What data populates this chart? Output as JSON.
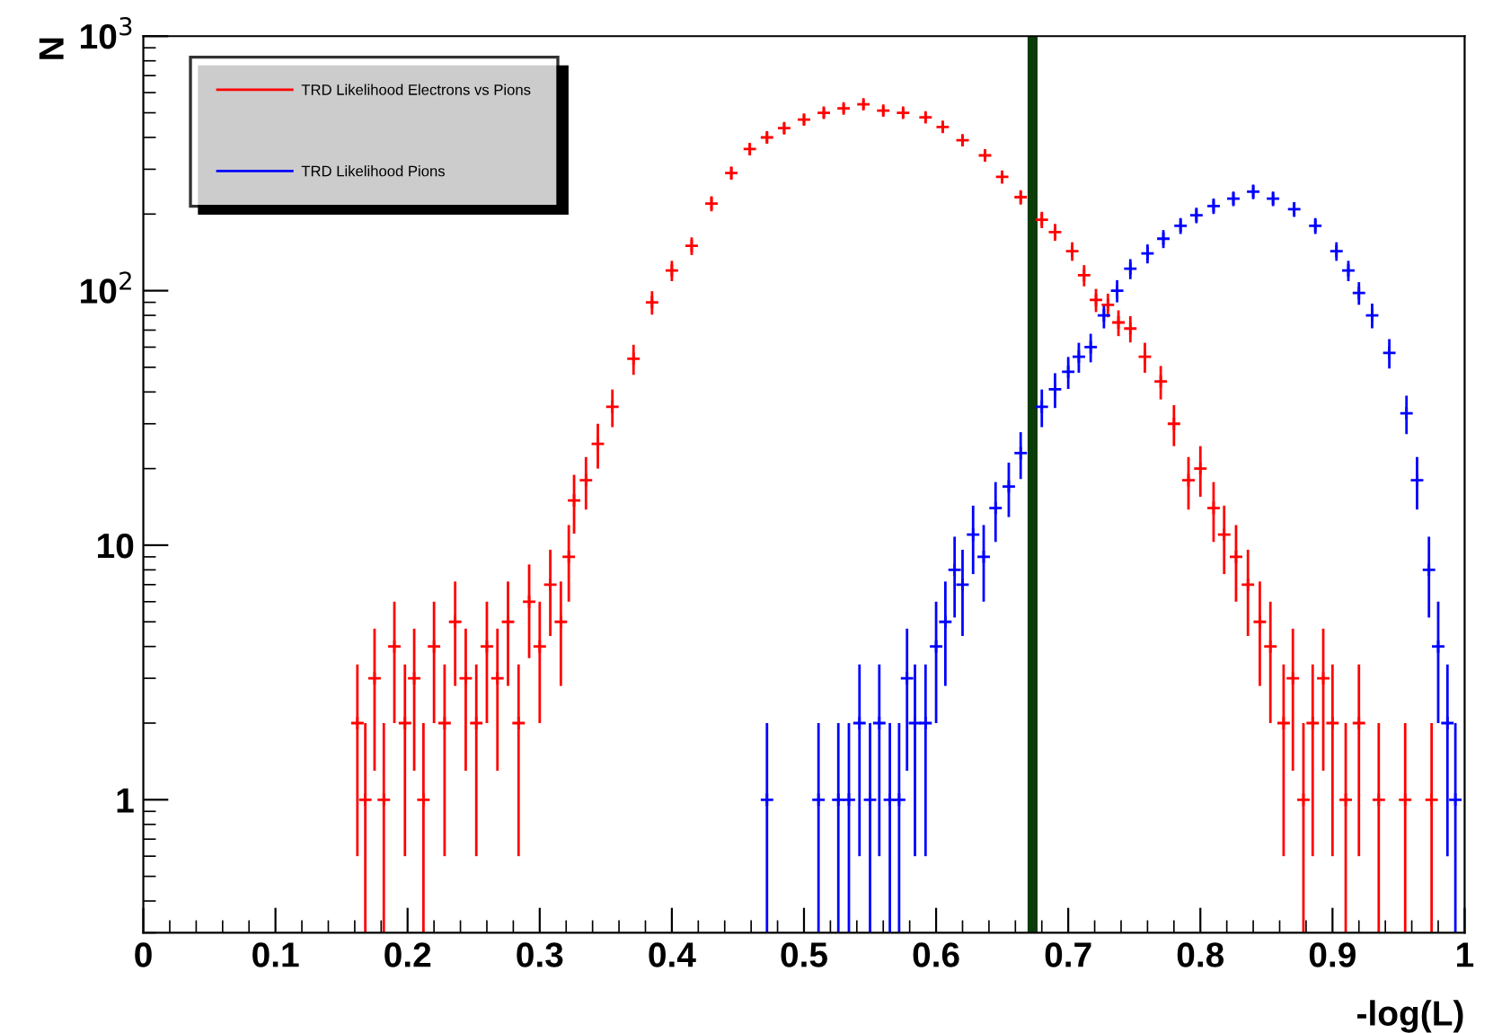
{
  "chart_data": {
    "type": "scatter",
    "xlabel": "-log(L)",
    "ylabel": "N",
    "log": "y",
    "grid": false,
    "legend": "top left",
    "marker": "cross",
    "xlim": [
      0,
      1
    ],
    "ylim": [
      0.3,
      1000
    ],
    "xticks": [
      0,
      0.1,
      0.2,
      0.3,
      0.4,
      0.5,
      0.6,
      0.7,
      0.8,
      0.9,
      1
    ],
    "yticks": [
      1,
      10,
      {
        "value": 100,
        "label": "10$^{2}$"
      },
      {
        "value": 1000,
        "label": "10$^{3}$"
      }
    ],
    "ref_lines": [
      {
        "axis": "x",
        "value": 0.673,
        "label": null,
        "color": "#0b3d0b"
      }
    ],
    "series": [
      {
        "name": "TRD Likelihood Electrons vs Pions",
        "color": "#ff0000",
        "x": [
          0.162,
          0.168,
          0.175,
          0.182,
          0.19,
          0.198,
          0.205,
          0.212,
          0.22,
          0.228,
          0.236,
          0.244,
          0.252,
          0.26,
          0.268,
          0.276,
          0.284,
          0.292,
          0.3,
          0.308,
          0.316,
          0.322,
          0.326,
          0.335,
          0.344,
          0.355,
          0.371,
          0.385,
          0.4,
          0.415,
          0.43,
          0.445,
          0.459,
          0.472,
          0.485,
          0.5,
          0.515,
          0.53,
          0.545,
          0.56,
          0.575,
          0.592,
          0.605,
          0.62,
          0.637,
          0.65,
          0.664,
          0.68,
          0.69,
          0.703,
          0.712,
          0.721,
          0.73,
          0.738,
          0.747,
          0.758,
          0.77,
          0.78,
          0.791,
          0.8,
          0.81,
          0.818,
          0.827,
          0.836,
          0.845,
          0.853,
          0.863,
          0.87,
          0.878,
          0.885,
          0.893,
          0.9,
          0.91,
          0.92,
          0.935,
          0.955,
          0.975
        ],
        "values": [
          2,
          1,
          3,
          1,
          4,
          2,
          3,
          1,
          4,
          2,
          5,
          3,
          2,
          4,
          3,
          5,
          2,
          6,
          4,
          7,
          5,
          9,
          15,
          18,
          25,
          35,
          54,
          90,
          120,
          150,
          220,
          290,
          360,
          400,
          435,
          470,
          500,
          520,
          540,
          510,
          500,
          480,
          440,
          390,
          340,
          280,
          233,
          190,
          170,
          143,
          115,
          92,
          88,
          75,
          71,
          55,
          44,
          30,
          18,
          20,
          14,
          11,
          9,
          7,
          5,
          4,
          2,
          3,
          1,
          2,
          3,
          2,
          1,
          2,
          1,
          1,
          1
        ],
        "errors": [
          1.4,
          [
            0.3,
            2
          ],
          1.7,
          [
            0.3,
            2
          ],
          2,
          1.4,
          1.7,
          [
            0.3,
            2
          ],
          2,
          1.4,
          2.2,
          1.7,
          1.4,
          2,
          1.7,
          2.2,
          1.4,
          2.4,
          2,
          2.6,
          2.2,
          3,
          3.9,
          4.2,
          5,
          5.9,
          7.3,
          9.5,
          11,
          12,
          15,
          17,
          19,
          20,
          21,
          22,
          22,
          23,
          23,
          23,
          22,
          22,
          21,
          20,
          18,
          17,
          15,
          14,
          13,
          12,
          11,
          9.6,
          9.4,
          8.7,
          8.4,
          7.4,
          6.6,
          5.5,
          4.2,
          4.5,
          3.7,
          3.3,
          3,
          2.6,
          2.2,
          2,
          1.4,
          1.7,
          [
            0.3,
            2
          ],
          1.4,
          1.7,
          1.4,
          [
            0.3,
            2
          ],
          1.4,
          [
            0.3,
            2
          ],
          [
            0.3,
            2
          ],
          [
            0.3,
            2
          ]
        ]
      },
      {
        "name": "TRD Likelihood Pions",
        "color": "#0000ff",
        "x": [
          0.472,
          0.511,
          0.526,
          0.534,
          0.542,
          0.55,
          0.557,
          0.565,
          0.572,
          0.578,
          0.584,
          0.592,
          0.6,
          0.607,
          0.614,
          0.62,
          0.628,
          0.636,
          0.645,
          0.655,
          0.664,
          0.68,
          0.69,
          0.7,
          0.708,
          0.717,
          0.727,
          0.737,
          0.747,
          0.76,
          0.772,
          0.785,
          0.797,
          0.81,
          0.825,
          0.84,
          0.855,
          0.871,
          0.887,
          0.903,
          0.912,
          0.92,
          0.93,
          0.943,
          0.956,
          0.964,
          0.973,
          0.98,
          0.987,
          0.993
        ],
        "values": [
          1,
          1,
          1,
          1,
          2,
          1,
          2,
          1,
          1,
          3,
          2,
          2,
          4,
          5,
          8,
          7,
          11,
          9,
          14,
          17,
          23,
          35,
          41,
          48,
          55,
          60,
          80,
          100,
          122,
          140,
          160,
          180,
          198,
          215,
          230,
          245,
          230,
          209,
          180,
          143,
          120,
          98,
          80,
          57,
          33,
          18,
          8,
          4,
          2,
          1
        ],
        "errors": [
          [
            0.3,
            2
          ],
          [
            0.3,
            2
          ],
          [
            0.3,
            2
          ],
          [
            0.3,
            2
          ],
          1.4,
          [
            0.3,
            2
          ],
          1.4,
          [
            0.3,
            2
          ],
          [
            0.3,
            2
          ],
          1.7,
          1.4,
          1.4,
          2,
          2.2,
          2.8,
          2.6,
          3.3,
          3,
          3.7,
          4.1,
          4.8,
          5.9,
          6.4,
          6.9,
          7.4,
          7.7,
          8.9,
          10,
          11,
          12,
          13,
          13,
          14,
          15,
          15,
          16,
          15,
          14,
          13,
          12,
          11,
          10,
          8.9,
          7.5,
          5.7,
          4.2,
          2.8,
          2,
          1.4,
          [
            0.3,
            2
          ]
        ]
      }
    ]
  }
}
